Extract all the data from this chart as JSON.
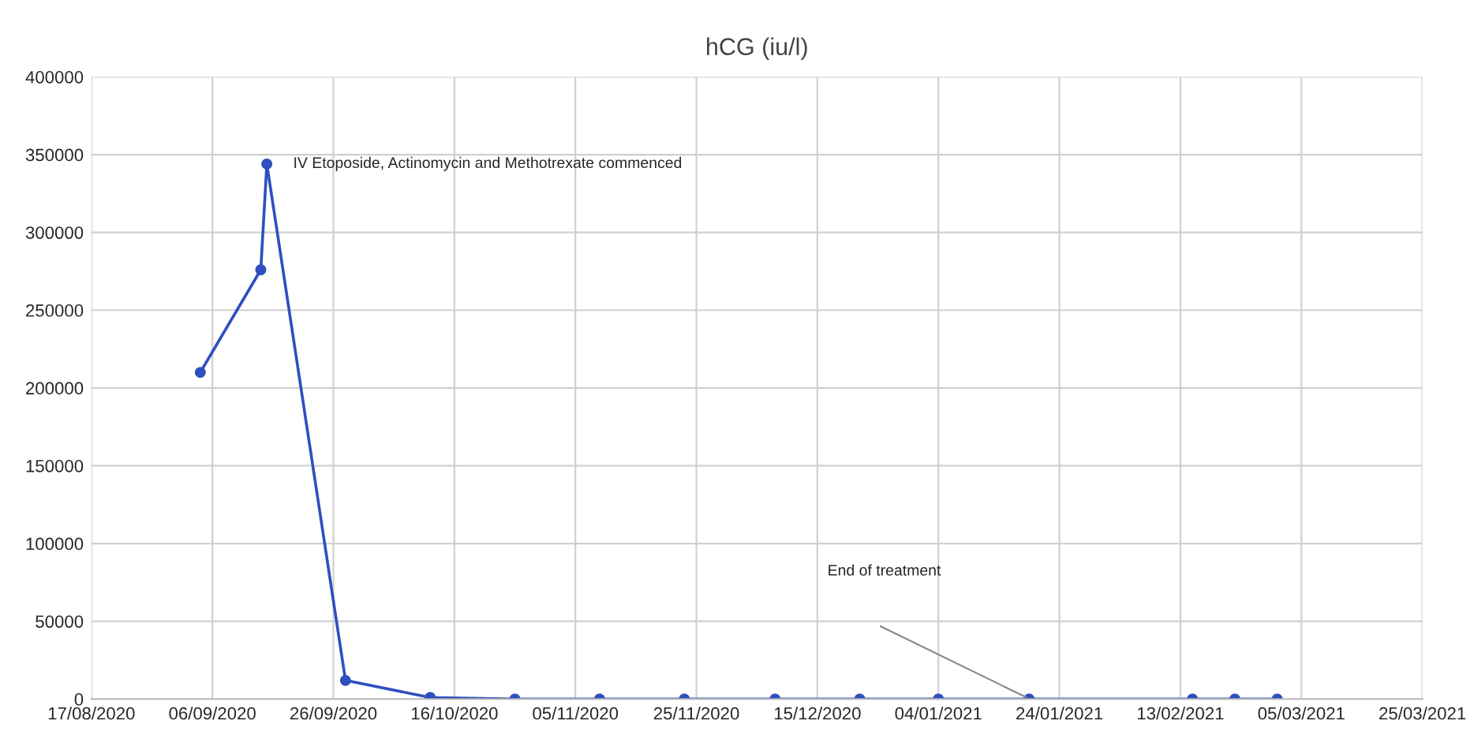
{
  "chart_data": {
    "type": "line",
    "title": "hCG (iu/l)",
    "x": [
      "2020-09-04",
      "2020-09-14",
      "2020-09-15",
      "2020-09-28",
      "2020-10-12",
      "2020-10-26",
      "2020-11-09",
      "2020-11-23",
      "2020-12-08",
      "2020-12-22",
      "2021-01-04",
      "2021-01-19",
      "2021-02-15",
      "2021-02-22",
      "2021-03-01"
    ],
    "series": [
      {
        "color": "#2e4fbf",
        "values": [
          210000,
          276000,
          344000,
          12000,
          1000,
          0,
          0,
          0,
          0,
          0,
          0,
          0,
          0,
          0,
          0
        ]
      }
    ],
    "xlim": [
      "2020-08-17",
      "2021-03-25"
    ],
    "xticks": [
      {
        "value": "2020-08-17",
        "label": "17/08/2020"
      },
      {
        "value": "2020-09-06",
        "label": "06/09/2020"
      },
      {
        "value": "2020-09-26",
        "label": "26/09/2020"
      },
      {
        "value": "2020-10-16",
        "label": "16/10/2020"
      },
      {
        "value": "2020-11-05",
        "label": "05/11/2020"
      },
      {
        "value": "2020-11-25",
        "label": "25/11/2020"
      },
      {
        "value": "2020-12-15",
        "label": "15/12/2020"
      },
      {
        "value": "2021-01-04",
        "label": "04/01/2021"
      },
      {
        "value": "2021-01-24",
        "label": "24/01/2021"
      },
      {
        "value": "2021-02-13",
        "label": "13/02/2021"
      },
      {
        "value": "2021-03-05",
        "label": "05/03/2021"
      },
      {
        "value": "2021-03-25",
        "label": "25/03/2021"
      }
    ],
    "ylim": [
      0,
      400000
    ],
    "yticks": [
      0,
      50000,
      100000,
      150000,
      200000,
      250000,
      300000,
      350000,
      400000
    ],
    "grid": true,
    "marker": "circle",
    "line_style": "solid",
    "annotations": [
      {
        "text": "IV Etoposide, Actinomycin and Methotrexate commenced",
        "x": "2020-09-15",
        "y": 344000
      },
      "End of treatment"
    ]
  }
}
